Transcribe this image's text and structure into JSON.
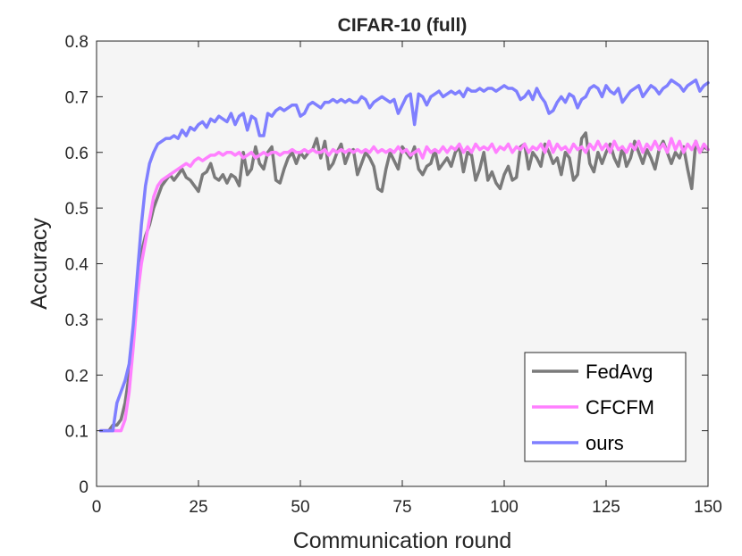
{
  "chart_data": {
    "type": "line",
    "title": "CIFAR-10 (full)",
    "xlabel": "Communication round",
    "ylabel": "Accuracy",
    "xlim": [
      0,
      150
    ],
    "ylim": [
      0,
      0.8
    ],
    "xticks": [
      0,
      25,
      50,
      75,
      100,
      125,
      150
    ],
    "yticks": [
      0,
      0.1,
      0.2,
      0.3,
      0.4,
      0.5,
      0.6,
      0.7,
      0.8
    ],
    "grid": false,
    "background": "#f5f5f5",
    "legend_position": "bottom-right",
    "series": [
      {
        "name": "FedAvg",
        "color": "#7a7a7a",
        "x": [
          1,
          2,
          3,
          4,
          5,
          6,
          7,
          8,
          9,
          10,
          11,
          12,
          13,
          14,
          15,
          16,
          17,
          18,
          19,
          20,
          21,
          22,
          23,
          24,
          25,
          26,
          27,
          28,
          29,
          30,
          31,
          32,
          33,
          34,
          35,
          36,
          37,
          38,
          39,
          40,
          41,
          42,
          43,
          44,
          45,
          46,
          47,
          48,
          49,
          50,
          51,
          52,
          53,
          54,
          55,
          56,
          57,
          58,
          59,
          60,
          61,
          62,
          63,
          64,
          65,
          66,
          67,
          68,
          69,
          70,
          71,
          72,
          73,
          74,
          75,
          76,
          77,
          78,
          79,
          80,
          81,
          82,
          83,
          84,
          85,
          86,
          87,
          88,
          89,
          90,
          91,
          92,
          93,
          94,
          95,
          96,
          97,
          98,
          99,
          100,
          101,
          102,
          103,
          104,
          105,
          106,
          107,
          108,
          109,
          110,
          111,
          112,
          113,
          114,
          115,
          116,
          117,
          118,
          119,
          120,
          121,
          122,
          123,
          124,
          125,
          126,
          127,
          128,
          129,
          130,
          131,
          132,
          133,
          134,
          135,
          136,
          137,
          138,
          139,
          140,
          141,
          142,
          143,
          144,
          145,
          146,
          147,
          148,
          149,
          150
        ],
        "values": [
          0.1,
          0.1,
          0.1,
          0.11,
          0.11,
          0.12,
          0.15,
          0.2,
          0.28,
          0.37,
          0.42,
          0.45,
          0.47,
          0.5,
          0.52,
          0.54,
          0.55,
          0.56,
          0.55,
          0.56,
          0.57,
          0.555,
          0.55,
          0.54,
          0.53,
          0.56,
          0.565,
          0.58,
          0.555,
          0.55,
          0.56,
          0.545,
          0.56,
          0.555,
          0.54,
          0.6,
          0.56,
          0.57,
          0.61,
          0.58,
          0.57,
          0.6,
          0.61,
          0.55,
          0.545,
          0.57,
          0.59,
          0.6,
          0.58,
          0.6,
          0.59,
          0.6,
          0.605,
          0.625,
          0.59,
          0.62,
          0.57,
          0.58,
          0.6,
          0.615,
          0.58,
          0.6,
          0.605,
          0.56,
          0.58,
          0.6,
          0.59,
          0.575,
          0.535,
          0.53,
          0.57,
          0.6,
          0.585,
          0.57,
          0.61,
          0.6,
          0.59,
          0.61,
          0.57,
          0.56,
          0.575,
          0.58,
          0.605,
          0.57,
          0.58,
          0.59,
          0.575,
          0.6,
          0.61,
          0.565,
          0.6,
          0.595,
          0.55,
          0.57,
          0.6,
          0.55,
          0.565,
          0.545,
          0.535,
          0.56,
          0.575,
          0.55,
          0.555,
          0.61,
          0.615,
          0.57,
          0.6,
          0.59,
          0.575,
          0.615,
          0.6,
          0.58,
          0.59,
          0.56,
          0.6,
          0.59,
          0.55,
          0.56,
          0.625,
          0.635,
          0.58,
          0.565,
          0.6,
          0.58,
          0.6,
          0.615,
          0.59,
          0.575,
          0.61,
          0.575,
          0.59,
          0.62,
          0.6,
          0.58,
          0.605,
          0.59,
          0.57,
          0.605,
          0.62,
          0.6,
          0.58,
          0.6,
          0.59,
          0.61,
          0.57,
          0.535,
          0.62,
          0.6,
          0.61,
          0.605
        ]
      },
      {
        "name": "CFCFM",
        "color": "#ff80ff",
        "x": [
          1,
          2,
          3,
          4,
          5,
          6,
          7,
          8,
          9,
          10,
          11,
          12,
          13,
          14,
          15,
          16,
          17,
          18,
          19,
          20,
          21,
          22,
          23,
          24,
          25,
          26,
          27,
          28,
          29,
          30,
          31,
          32,
          33,
          34,
          35,
          36,
          37,
          38,
          39,
          40,
          41,
          42,
          43,
          44,
          45,
          46,
          47,
          48,
          49,
          50,
          51,
          52,
          53,
          54,
          55,
          56,
          57,
          58,
          59,
          60,
          61,
          62,
          63,
          64,
          65,
          66,
          67,
          68,
          69,
          70,
          71,
          72,
          73,
          74,
          75,
          76,
          77,
          78,
          79,
          80,
          81,
          82,
          83,
          84,
          85,
          86,
          87,
          88,
          89,
          90,
          91,
          92,
          93,
          94,
          95,
          96,
          97,
          98,
          99,
          100,
          101,
          102,
          103,
          104,
          105,
          106,
          107,
          108,
          109,
          110,
          111,
          112,
          113,
          114,
          115,
          116,
          117,
          118,
          119,
          120,
          121,
          122,
          123,
          124,
          125,
          126,
          127,
          128,
          129,
          130,
          131,
          132,
          133,
          134,
          135,
          136,
          137,
          138,
          139,
          140,
          141,
          142,
          143,
          144,
          145,
          146,
          147,
          148,
          149,
          150
        ],
        "values": [
          0.1,
          0.1,
          0.1,
          0.1,
          0.1,
          0.1,
          0.12,
          0.17,
          0.25,
          0.34,
          0.4,
          0.44,
          0.48,
          0.52,
          0.54,
          0.55,
          0.555,
          0.56,
          0.565,
          0.57,
          0.575,
          0.58,
          0.575,
          0.585,
          0.59,
          0.585,
          0.59,
          0.595,
          0.595,
          0.6,
          0.595,
          0.6,
          0.6,
          0.595,
          0.6,
          0.59,
          0.595,
          0.6,
          0.59,
          0.595,
          0.6,
          0.595,
          0.6,
          0.6,
          0.595,
          0.6,
          0.6,
          0.605,
          0.6,
          0.6,
          0.605,
          0.6,
          0.605,
          0.6,
          0.6,
          0.605,
          0.595,
          0.605,
          0.6,
          0.605,
          0.6,
          0.605,
          0.6,
          0.605,
          0.6,
          0.605,
          0.6,
          0.61,
          0.6,
          0.605,
          0.6,
          0.605,
          0.6,
          0.61,
          0.6,
          0.605,
          0.595,
          0.6,
          0.605,
          0.59,
          0.61,
          0.6,
          0.605,
          0.6,
          0.61,
          0.6,
          0.61,
          0.605,
          0.615,
          0.6,
          0.61,
          0.6,
          0.615,
          0.605,
          0.61,
          0.605,
          0.615,
          0.6,
          0.61,
          0.605,
          0.615,
          0.6,
          0.61,
          0.605,
          0.615,
          0.6,
          0.61,
          0.605,
          0.615,
          0.6,
          0.62,
          0.6,
          0.615,
          0.605,
          0.61,
          0.6,
          0.615,
          0.605,
          0.61,
          0.6,
          0.615,
          0.605,
          0.62,
          0.605,
          0.615,
          0.6,
          0.62,
          0.605,
          0.61,
          0.6,
          0.615,
          0.605,
          0.62,
          0.6,
          0.615,
          0.605,
          0.62,
          0.605,
          0.615,
          0.6,
          0.625,
          0.605,
          0.62,
          0.6,
          0.615,
          0.605,
          0.62,
          0.6,
          0.615,
          0.605
        ]
      },
      {
        "name": "ours",
        "color": "#7f7fff",
        "x": [
          1,
          2,
          3,
          4,
          5,
          6,
          7,
          8,
          9,
          10,
          11,
          12,
          13,
          14,
          15,
          16,
          17,
          18,
          19,
          20,
          21,
          22,
          23,
          24,
          25,
          26,
          27,
          28,
          29,
          30,
          31,
          32,
          33,
          34,
          35,
          36,
          37,
          38,
          39,
          40,
          41,
          42,
          43,
          44,
          45,
          46,
          47,
          48,
          49,
          50,
          51,
          52,
          53,
          54,
          55,
          56,
          57,
          58,
          59,
          60,
          61,
          62,
          63,
          64,
          65,
          66,
          67,
          68,
          69,
          70,
          71,
          72,
          73,
          74,
          75,
          76,
          77,
          78,
          79,
          80,
          81,
          82,
          83,
          84,
          85,
          86,
          87,
          88,
          89,
          90,
          91,
          92,
          93,
          94,
          95,
          96,
          97,
          98,
          99,
          100,
          101,
          102,
          103,
          104,
          105,
          106,
          107,
          108,
          109,
          110,
          111,
          112,
          113,
          114,
          115,
          116,
          117,
          118,
          119,
          120,
          121,
          122,
          123,
          124,
          125,
          126,
          127,
          128,
          129,
          130,
          131,
          132,
          133,
          134,
          135,
          136,
          137,
          138,
          139,
          140,
          141,
          142,
          143,
          144,
          145,
          146,
          147,
          148,
          149,
          150
        ],
        "values": [
          0.1,
          0.1,
          0.1,
          0.1,
          0.15,
          0.17,
          0.19,
          0.22,
          0.29,
          0.38,
          0.47,
          0.54,
          0.58,
          0.6,
          0.615,
          0.62,
          0.625,
          0.625,
          0.63,
          0.625,
          0.64,
          0.63,
          0.645,
          0.64,
          0.65,
          0.655,
          0.645,
          0.66,
          0.655,
          0.665,
          0.66,
          0.655,
          0.67,
          0.65,
          0.665,
          0.67,
          0.64,
          0.665,
          0.66,
          0.63,
          0.63,
          0.67,
          0.665,
          0.675,
          0.68,
          0.675,
          0.68,
          0.685,
          0.685,
          0.665,
          0.67,
          0.685,
          0.69,
          0.685,
          0.68,
          0.69,
          0.69,
          0.695,
          0.69,
          0.695,
          0.69,
          0.695,
          0.69,
          0.69,
          0.7,
          0.695,
          0.68,
          0.69,
          0.695,
          0.7,
          0.695,
          0.69,
          0.695,
          0.67,
          0.685,
          0.7,
          0.705,
          0.65,
          0.705,
          0.7,
          0.685,
          0.7,
          0.705,
          0.71,
          0.7,
          0.705,
          0.71,
          0.705,
          0.71,
          0.7,
          0.715,
          0.71,
          0.71,
          0.715,
          0.71,
          0.715,
          0.715,
          0.71,
          0.715,
          0.72,
          0.715,
          0.715,
          0.71,
          0.695,
          0.7,
          0.71,
          0.695,
          0.715,
          0.7,
          0.69,
          0.67,
          0.675,
          0.69,
          0.7,
          0.69,
          0.705,
          0.7,
          0.68,
          0.695,
          0.7,
          0.715,
          0.72,
          0.715,
          0.7,
          0.72,
          0.71,
          0.705,
          0.715,
          0.69,
          0.7,
          0.71,
          0.715,
          0.72,
          0.7,
          0.71,
          0.72,
          0.715,
          0.705,
          0.715,
          0.72,
          0.73,
          0.725,
          0.72,
          0.71,
          0.72,
          0.725,
          0.73,
          0.71,
          0.72,
          0.725
        ]
      }
    ]
  }
}
